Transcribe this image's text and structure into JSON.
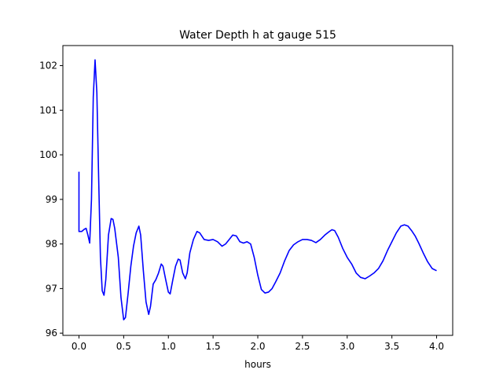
{
  "chart_data": {
    "type": "line",
    "title": "Water Depth h at gauge 515",
    "xlabel": "hours",
    "ylabel": "",
    "xlim": [
      -0.18,
      4.18
    ],
    "ylim": [
      95.95,
      102.45
    ],
    "xticks": [
      0.0,
      0.5,
      1.0,
      1.5,
      2.0,
      2.5,
      3.0,
      3.5,
      4.0
    ],
    "xtick_labels": [
      "0.0",
      "0.5",
      "1.0",
      "1.5",
      "2.0",
      "2.5",
      "3.0",
      "3.5",
      "4.0"
    ],
    "yticks": [
      96,
      97,
      98,
      99,
      100,
      101,
      102
    ],
    "ytick_labels": [
      "96",
      "97",
      "98",
      "99",
      "100",
      "101",
      "102"
    ],
    "grid": false,
    "series": [
      {
        "name": "",
        "color": "#0000ff",
        "points": [
          [
            0.0,
            99.62
          ],
          [
            0.0,
            98.28
          ],
          [
            0.03,
            98.28
          ],
          [
            0.06,
            98.33
          ],
          [
            0.08,
            98.35
          ],
          [
            0.1,
            98.2
          ],
          [
            0.12,
            98.02
          ],
          [
            0.14,
            99.0
          ],
          [
            0.16,
            101.3
          ],
          [
            0.18,
            102.13
          ],
          [
            0.2,
            101.4
          ],
          [
            0.22,
            99.5
          ],
          [
            0.24,
            97.7
          ],
          [
            0.26,
            96.95
          ],
          [
            0.28,
            96.85
          ],
          [
            0.3,
            97.2
          ],
          [
            0.33,
            98.2
          ],
          [
            0.36,
            98.57
          ],
          [
            0.38,
            98.55
          ],
          [
            0.4,
            98.35
          ],
          [
            0.44,
            97.7
          ],
          [
            0.47,
            96.8
          ],
          [
            0.5,
            96.3
          ],
          [
            0.52,
            96.35
          ],
          [
            0.55,
            96.9
          ],
          [
            0.58,
            97.5
          ],
          [
            0.61,
            97.95
          ],
          [
            0.64,
            98.25
          ],
          [
            0.67,
            98.4
          ],
          [
            0.69,
            98.2
          ],
          [
            0.72,
            97.4
          ],
          [
            0.75,
            96.7
          ],
          [
            0.78,
            96.42
          ],
          [
            0.8,
            96.6
          ],
          [
            0.83,
            97.1
          ],
          [
            0.86,
            97.2
          ],
          [
            0.89,
            97.35
          ],
          [
            0.92,
            97.55
          ],
          [
            0.94,
            97.5
          ],
          [
            0.97,
            97.2
          ],
          [
            1.0,
            96.92
          ],
          [
            1.02,
            96.88
          ],
          [
            1.05,
            97.2
          ],
          [
            1.08,
            97.5
          ],
          [
            1.11,
            97.66
          ],
          [
            1.13,
            97.64
          ],
          [
            1.16,
            97.35
          ],
          [
            1.19,
            97.22
          ],
          [
            1.21,
            97.35
          ],
          [
            1.24,
            97.8
          ],
          [
            1.28,
            98.1
          ],
          [
            1.32,
            98.28
          ],
          [
            1.35,
            98.25
          ],
          [
            1.4,
            98.1
          ],
          [
            1.45,
            98.08
          ],
          [
            1.5,
            98.1
          ],
          [
            1.55,
            98.05
          ],
          [
            1.6,
            97.95
          ],
          [
            1.64,
            98.0
          ],
          [
            1.68,
            98.1
          ],
          [
            1.72,
            98.2
          ],
          [
            1.76,
            98.18
          ],
          [
            1.8,
            98.05
          ],
          [
            1.84,
            98.02
          ],
          [
            1.88,
            98.05
          ],
          [
            1.92,
            98.0
          ],
          [
            1.96,
            97.7
          ],
          [
            2.0,
            97.3
          ],
          [
            2.04,
            96.98
          ],
          [
            2.08,
            96.9
          ],
          [
            2.12,
            96.92
          ],
          [
            2.16,
            97.0
          ],
          [
            2.2,
            97.15
          ],
          [
            2.25,
            97.35
          ],
          [
            2.3,
            97.62
          ],
          [
            2.35,
            97.85
          ],
          [
            2.4,
            97.98
          ],
          [
            2.45,
            98.05
          ],
          [
            2.5,
            98.1
          ],
          [
            2.55,
            98.1
          ],
          [
            2.6,
            98.08
          ],
          [
            2.65,
            98.03
          ],
          [
            2.7,
            98.1
          ],
          [
            2.75,
            98.2
          ],
          [
            2.8,
            98.28
          ],
          [
            2.83,
            98.32
          ],
          [
            2.86,
            98.3
          ],
          [
            2.9,
            98.15
          ],
          [
            2.95,
            97.9
          ],
          [
            3.0,
            97.7
          ],
          [
            3.05,
            97.55
          ],
          [
            3.1,
            97.35
          ],
          [
            3.15,
            97.25
          ],
          [
            3.2,
            97.22
          ],
          [
            3.25,
            97.28
          ],
          [
            3.3,
            97.35
          ],
          [
            3.35,
            97.45
          ],
          [
            3.4,
            97.62
          ],
          [
            3.45,
            97.85
          ],
          [
            3.5,
            98.05
          ],
          [
            3.55,
            98.25
          ],
          [
            3.6,
            98.4
          ],
          [
            3.64,
            98.43
          ],
          [
            3.68,
            98.4
          ],
          [
            3.72,
            98.3
          ],
          [
            3.76,
            98.18
          ],
          [
            3.8,
            98.02
          ],
          [
            3.85,
            97.8
          ],
          [
            3.9,
            97.6
          ],
          [
            3.95,
            97.45
          ],
          [
            4.0,
            97.4
          ]
        ]
      }
    ]
  }
}
